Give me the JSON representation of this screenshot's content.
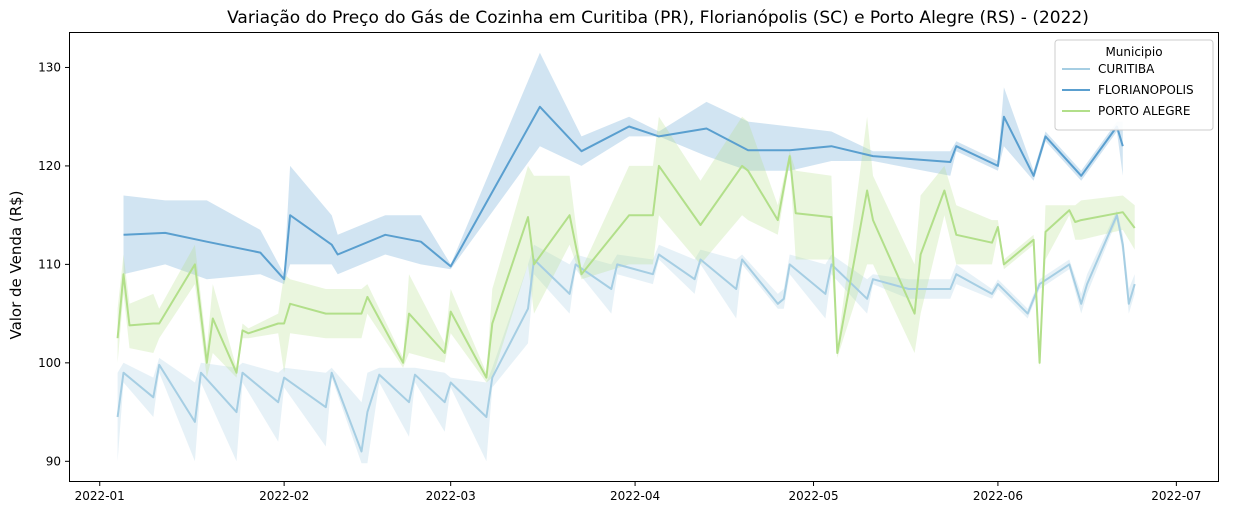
{
  "chart_data": {
    "type": "line",
    "title": "Variação do Preço do Gás de Cozinha em Curitiba (PR), Florianópolis (SC) e Porto Alegre (RS) - (2022)",
    "xlabel": "",
    "ylabel": "Valor de Venda  (R$)",
    "xlim": [
      "2021-12-27",
      "2022-07-08"
    ],
    "ylim": [
      88,
      133.5
    ],
    "x_ticks": [
      "2022-01",
      "2022-02",
      "2022-03",
      "2022-04",
      "2022-05",
      "2022-06",
      "2022-07"
    ],
    "y_ticks": [
      90,
      100,
      110,
      120,
      130
    ],
    "grid": false,
    "legend": {
      "title": "Municipio",
      "position": "top-right"
    },
    "series": [
      {
        "name": "CURITIBA",
        "color": "#a6cee3",
        "points": [
          [
            "2022-01-04",
            94.5,
            90.0,
            99.0
          ],
          [
            "2022-01-05",
            99.0,
            98.0,
            100.0
          ],
          [
            "2022-01-10",
            96.5,
            94.5,
            98.5
          ],
          [
            "2022-01-11",
            99.8,
            99.0,
            100.5
          ],
          [
            "2022-01-17",
            94.0,
            90.0,
            98.0
          ],
          [
            "2022-01-18",
            99.0,
            98.0,
            100.0
          ],
          [
            "2022-01-24",
            95.0,
            90.0,
            99.5
          ],
          [
            "2022-01-25",
            99.0,
            98.0,
            100.0
          ],
          [
            "2022-01-31",
            96.0,
            92.0,
            99.0
          ],
          [
            "2022-02-01",
            98.5,
            97.5,
            99.5
          ],
          [
            "2022-02-08",
            95.5,
            91.5,
            99.0
          ],
          [
            "2022-02-09",
            99.0,
            98.5,
            99.5
          ],
          [
            "2022-02-14",
            91.0,
            89.8,
            96.0
          ],
          [
            "2022-02-15",
            95.0,
            89.8,
            99.0
          ],
          [
            "2022-02-17",
            98.8,
            98.0,
            99.5
          ],
          [
            "2022-02-22",
            96.0,
            92.5,
            99.5
          ],
          [
            "2022-02-23",
            98.8,
            98.0,
            99.5
          ],
          [
            "2022-02-28",
            96.0,
            93.0,
            99.0
          ],
          [
            "2022-03-01",
            98.0,
            97.5,
            98.5
          ],
          [
            "2022-03-07",
            94.5,
            90.0,
            98.0
          ],
          [
            "2022-03-08",
            98.5,
            97.5,
            99.5
          ],
          [
            "2022-03-14",
            105.5,
            102.0,
            110.0
          ],
          [
            "2022-03-15",
            110.5,
            109.0,
            112.0
          ],
          [
            "2022-03-21",
            107.0,
            105.0,
            110.0
          ],
          [
            "2022-03-22",
            110.0,
            109.5,
            111.0
          ],
          [
            "2022-03-28",
            107.5,
            105.0,
            110.0
          ],
          [
            "2022-03-29",
            110.0,
            109.0,
            111.0
          ],
          [
            "2022-04-04",
            109.0,
            108.0,
            110.5
          ],
          [
            "2022-04-05",
            111.0,
            110.5,
            112.0
          ],
          [
            "2022-04-11",
            108.5,
            107.0,
            110.5
          ],
          [
            "2022-04-12",
            110.5,
            110.0,
            111.5
          ],
          [
            "2022-04-18",
            107.5,
            104.5,
            110.5
          ],
          [
            "2022-04-19",
            110.5,
            110.0,
            111.0
          ],
          [
            "2022-04-25",
            106.0,
            105.5,
            107.0
          ],
          [
            "2022-04-26",
            106.5,
            105.5,
            107.5
          ],
          [
            "2022-04-27",
            110.0,
            109.0,
            111.0
          ],
          [
            "2022-05-03",
            107.0,
            104.5,
            110.0
          ],
          [
            "2022-05-04",
            110.0,
            109.0,
            111.0
          ],
          [
            "2022-05-10",
            106.5,
            105.0,
            108.5
          ],
          [
            "2022-05-11",
            108.5,
            108.0,
            109.0
          ],
          [
            "2022-05-17",
            107.5,
            106.5,
            108.5
          ],
          [
            "2022-05-24",
            107.5,
            106.5,
            108.5
          ],
          [
            "2022-05-25",
            109.0,
            108.0,
            110.0
          ],
          [
            "2022-05-31",
            107.0,
            106.5,
            107.5
          ],
          [
            "2022-06-01",
            108.0,
            107.5,
            108.5
          ],
          [
            "2022-06-06",
            105.0,
            104.5,
            105.5
          ],
          [
            "2022-06-08",
            108.0,
            107.5,
            108.5
          ],
          [
            "2022-06-13",
            110.0,
            109.5,
            110.5
          ],
          [
            "2022-06-15",
            106.0,
            105.0,
            107.0
          ],
          [
            "2022-06-16",
            108.0,
            107.0,
            109.0
          ],
          [
            "2022-06-21",
            115.0,
            114.5,
            115.5
          ],
          [
            "2022-06-22",
            112.0,
            111.0,
            113.0
          ],
          [
            "2022-06-23",
            106.0,
            105.0,
            107.5
          ],
          [
            "2022-06-24",
            108.0,
            107.0,
            109.0
          ]
        ]
      },
      {
        "name": "FLORIANOPOLIS",
        "color": "#5a9fcf",
        "points": [
          [
            "2022-01-05",
            113.0,
            109.0,
            117.0
          ],
          [
            "2022-01-12",
            113.2,
            110.0,
            116.5
          ],
          [
            "2022-01-19",
            112.3,
            108.5,
            116.5
          ],
          [
            "2022-01-28",
            111.2,
            109.0,
            113.5
          ],
          [
            "2022-02-01",
            108.5,
            108.0,
            109.0
          ],
          [
            "2022-02-02",
            115.0,
            110.0,
            120.0
          ],
          [
            "2022-02-09",
            112.0,
            110.0,
            115.0
          ],
          [
            "2022-02-10",
            111.0,
            109.0,
            113.0
          ],
          [
            "2022-02-18",
            113.0,
            111.0,
            115.0
          ],
          [
            "2022-02-24",
            112.3,
            110.0,
            115.0
          ],
          [
            "2022-03-01",
            109.8,
            109.5,
            110.0
          ],
          [
            "2022-03-16",
            126.0,
            122.0,
            131.5
          ],
          [
            "2022-03-23",
            121.5,
            120.0,
            123.0
          ],
          [
            "2022-03-31",
            124.0,
            123.0,
            125.0
          ],
          [
            "2022-04-05",
            123.0,
            123.0,
            123.5
          ],
          [
            "2022-04-13",
            123.8,
            121.0,
            126.5
          ],
          [
            "2022-04-20",
            121.6,
            119.5,
            124.5
          ],
          [
            "2022-04-27",
            121.6,
            119.5,
            124.0
          ],
          [
            "2022-05-04",
            122.0,
            120.5,
            123.5
          ],
          [
            "2022-05-11",
            121.0,
            120.5,
            121.5
          ],
          [
            "2022-05-24",
            120.4,
            119.0,
            121.5
          ],
          [
            "2022-05-25",
            122.0,
            121.5,
            122.5
          ],
          [
            "2022-06-01",
            120.0,
            119.5,
            120.5
          ],
          [
            "2022-06-02",
            125.0,
            122.0,
            128.0
          ],
          [
            "2022-06-07",
            119.0,
            118.5,
            119.5
          ],
          [
            "2022-06-09",
            123.0,
            122.5,
            123.5
          ],
          [
            "2022-06-15",
            119.0,
            118.5,
            119.5
          ],
          [
            "2022-06-21",
            124.0,
            123.5,
            124.5
          ],
          [
            "2022-06-22",
            122.0,
            119.0,
            124.5
          ]
        ]
      },
      {
        "name": "PORTO ALEGRE",
        "color": "#b2df8a",
        "points": [
          [
            "2022-01-04",
            102.5,
            100.0,
            105.5
          ],
          [
            "2022-01-05",
            109.0,
            107.0,
            111.0
          ],
          [
            "2022-01-06",
            103.8,
            101.5,
            106.0
          ],
          [
            "2022-01-10",
            104.0,
            101.0,
            107.0
          ],
          [
            "2022-01-11",
            104.0,
            102.5,
            105.5
          ],
          [
            "2022-01-17",
            110.0,
            108.0,
            112.0
          ],
          [
            "2022-01-19",
            100.0,
            98.5,
            101.5
          ],
          [
            "2022-01-20",
            104.5,
            101.0,
            108.0
          ],
          [
            "2022-01-24",
            99.0,
            98.5,
            99.5
          ],
          [
            "2022-01-25",
            103.3,
            102.5,
            104.0
          ],
          [
            "2022-01-26",
            103.0,
            102.5,
            103.5
          ],
          [
            "2022-01-31",
            104.0,
            103.0,
            105.0
          ],
          [
            "2022-02-01",
            104.0,
            99.0,
            109.0
          ],
          [
            "2022-02-02",
            106.0,
            103.0,
            108.5
          ],
          [
            "2022-02-08",
            105.0,
            102.5,
            107.5
          ],
          [
            "2022-02-14",
            105.0,
            102.5,
            107.5
          ],
          [
            "2022-02-15",
            106.7,
            105.0,
            108.0
          ],
          [
            "2022-02-21",
            100.0,
            99.5,
            100.5
          ],
          [
            "2022-02-22",
            105.0,
            101.0,
            109.0
          ],
          [
            "2022-02-28",
            101.0,
            100.0,
            102.0
          ],
          [
            "2022-03-01",
            105.2,
            103.0,
            107.5
          ],
          [
            "2022-03-07",
            98.5,
            98.0,
            99.0
          ],
          [
            "2022-03-08",
            104.0,
            98.5,
            107.5
          ],
          [
            "2022-03-14",
            114.8,
            110.0,
            120.0
          ],
          [
            "2022-03-15",
            110.0,
            105.0,
            119.0
          ],
          [
            "2022-03-21",
            115.0,
            112.0,
            119.0
          ],
          [
            "2022-03-23",
            109.0,
            108.5,
            109.5
          ],
          [
            "2022-03-31",
            115.0,
            110.0,
            120.0
          ],
          [
            "2022-04-04",
            115.0,
            110.0,
            120.0
          ],
          [
            "2022-04-05",
            120.0,
            115.0,
            125.0
          ],
          [
            "2022-04-12",
            114.0,
            110.0,
            118.5
          ],
          [
            "2022-04-19",
            120.0,
            115.0,
            125.0
          ],
          [
            "2022-04-20",
            119.5,
            114.5,
            124.5
          ],
          [
            "2022-04-25",
            114.5,
            113.0,
            116.0
          ],
          [
            "2022-04-27",
            121.0,
            120.5,
            121.5
          ],
          [
            "2022-04-28",
            115.2,
            110.5,
            119.5
          ],
          [
            "2022-05-04",
            114.8,
            110.5,
            119.0
          ],
          [
            "2022-05-05",
            101.0,
            100.5,
            101.5
          ],
          [
            "2022-05-10",
            117.5,
            110.0,
            125.0
          ],
          [
            "2022-05-11",
            114.5,
            110.0,
            119.0
          ],
          [
            "2022-05-18",
            105.0,
            101.0,
            110.0
          ],
          [
            "2022-05-19",
            111.0,
            105.0,
            117.0
          ],
          [
            "2022-05-23",
            117.5,
            115.0,
            120.0
          ],
          [
            "2022-05-25",
            113.0,
            110.0,
            116.0
          ],
          [
            "2022-05-31",
            112.2,
            110.0,
            114.5
          ],
          [
            "2022-06-01",
            113.8,
            113.0,
            114.5
          ],
          [
            "2022-06-02",
            110.0,
            109.5,
            110.5
          ],
          [
            "2022-06-07",
            112.5,
            112.0,
            113.0
          ],
          [
            "2022-06-08",
            100.0,
            99.5,
            100.5
          ],
          [
            "2022-06-09",
            113.3,
            110.5,
            116.0
          ],
          [
            "2022-06-13",
            115.5,
            115.0,
            116.0
          ],
          [
            "2022-06-14",
            114.3,
            112.5,
            116.0
          ],
          [
            "2022-06-15",
            114.5,
            112.5,
            116.5
          ],
          [
            "2022-06-22",
            115.3,
            113.5,
            117.0
          ],
          [
            "2022-06-24",
            113.7,
            111.5,
            116.0
          ]
        ]
      }
    ]
  }
}
